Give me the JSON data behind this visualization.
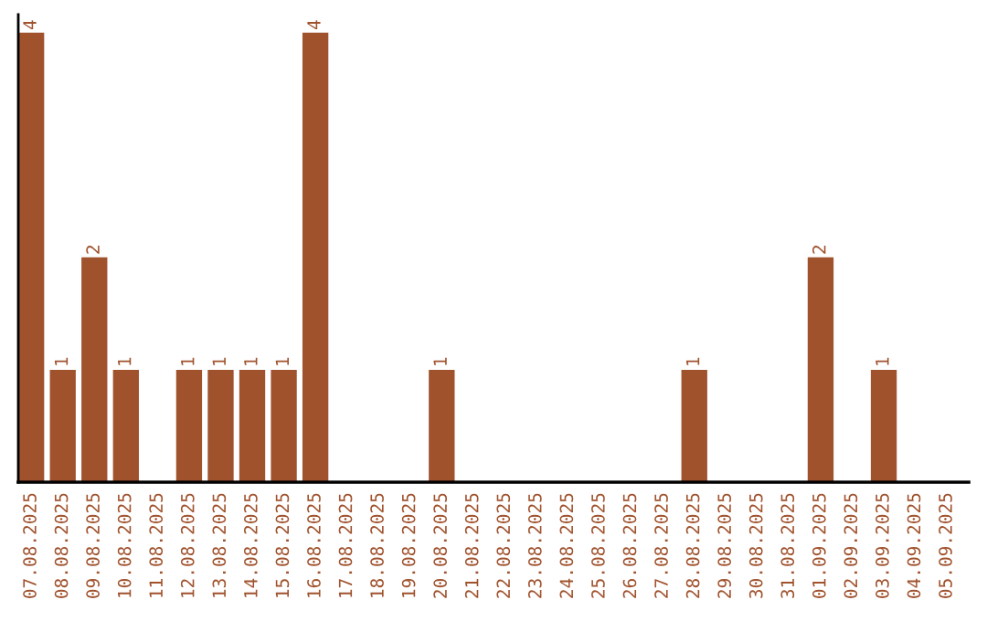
{
  "chart_data": {
    "type": "bar",
    "categories": [
      "07.08.2025",
      "08.08.2025",
      "09.08.2025",
      "10.08.2025",
      "11.08.2025",
      "12.08.2025",
      "13.08.2025",
      "14.08.2025",
      "15.08.2025",
      "16.08.2025",
      "17.08.2025",
      "18.08.2025",
      "19.08.2025",
      "20.08.2025",
      "21.08.2025",
      "22.08.2025",
      "23.08.2025",
      "24.08.2025",
      "25.08.2025",
      "26.08.2025",
      "27.08.2025",
      "28.08.2025",
      "29.08.2025",
      "30.08.2025",
      "31.08.2025",
      "01.09.2025",
      "02.09.2025",
      "03.09.2025",
      "04.09.2025",
      "05.09.2025"
    ],
    "values": [
      4,
      1,
      2,
      1,
      0,
      1,
      1,
      1,
      1,
      4,
      0,
      0,
      0,
      1,
      0,
      0,
      0,
      0,
      0,
      0,
      0,
      1,
      0,
      0,
      0,
      2,
      0,
      1,
      0,
      0
    ],
    "value_labels": [
      "4",
      "1",
      "2",
      "1",
      null,
      "1",
      "1",
      "1",
      "1",
      "4",
      null,
      null,
      null,
      "1",
      null,
      null,
      null,
      null,
      null,
      null,
      null,
      "1",
      null,
      null,
      null,
      "2",
      null,
      "1",
      null,
      null
    ],
    "color": "#a0522d",
    "grid": false,
    "legend": false,
    "tick_labels": "x"
  }
}
